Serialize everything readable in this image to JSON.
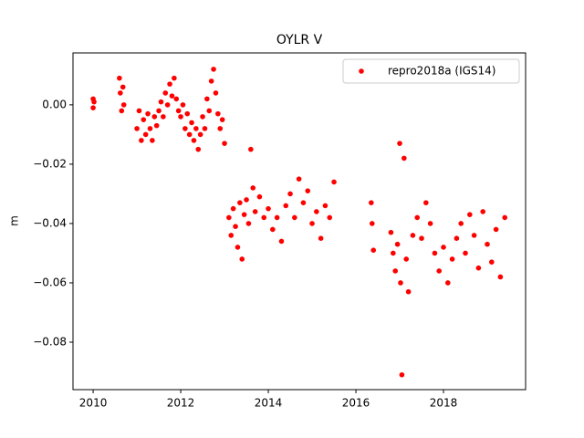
{
  "chart_data": {
    "type": "scatter",
    "title": "OYLR V",
    "y_label": "m",
    "xlim": [
      2009.54,
      2019.875
    ],
    "ylim": [
      -0.096,
      0.0175
    ],
    "xticks": [
      2010,
      2012,
      2014,
      2016,
      2018
    ],
    "yticks": [
      {
        "value": 0.0,
        "label": "0.00"
      },
      {
        "value": -0.02,
        "label": "−0.02"
      },
      {
        "value": -0.04,
        "label": "−0.04"
      },
      {
        "value": -0.06,
        "label": "−0.06"
      },
      {
        "value": -0.08,
        "label": "−0.08"
      }
    ],
    "grid": false,
    "legend": "upper right",
    "series": [
      {
        "name": "repro2018a (IGS14)",
        "color": "#ff0000",
        "x": [
          2010.0,
          2010.0,
          2010.02,
          2010.6,
          2010.62,
          2010.65,
          2010.68,
          2010.7,
          2011.0,
          2011.05,
          2011.1,
          2011.15,
          2011.2,
          2011.25,
          2011.3,
          2011.35,
          2011.4,
          2011.45,
          2011.5,
          2011.55,
          2011.6,
          2011.65,
          2011.7,
          2011.75,
          2011.8,
          2011.85,
          2011.9,
          2011.95,
          2012.0,
          2012.05,
          2012.1,
          2012.15,
          2012.2,
          2012.25,
          2012.3,
          2012.35,
          2012.4,
          2012.45,
          2012.5,
          2012.55,
          2012.6,
          2012.65,
          2012.7,
          2012.75,
          2012.8,
          2012.85,
          2012.9,
          2012.95,
          2013.0,
          2013.1,
          2013.15,
          2013.2,
          2013.25,
          2013.3,
          2013.35,
          2013.4,
          2013.45,
          2013.5,
          2013.55,
          2013.6,
          2013.65,
          2013.7,
          2013.8,
          2013.9,
          2014.0,
          2014.1,
          2014.2,
          2014.3,
          2014.4,
          2014.5,
          2014.6,
          2014.7,
          2014.8,
          2014.9,
          2015.0,
          2015.1,
          2015.2,
          2015.3,
          2015.4,
          2015.5,
          2016.35,
          2016.37,
          2016.4,
          2016.8,
          2016.85,
          2016.9,
          2016.95,
          2017.0,
          2017.02,
          2017.05,
          2017.1,
          2017.15,
          2017.2,
          2017.3,
          2017.4,
          2017.5,
          2017.6,
          2017.7,
          2017.8,
          2017.9,
          2018.0,
          2018.1,
          2018.2,
          2018.3,
          2018.4,
          2018.5,
          2018.6,
          2018.7,
          2018.8,
          2018.9,
          2019.0,
          2019.1,
          2019.2,
          2019.3,
          2019.4
        ],
        "values": [
          0.002,
          -0.001,
          0.001,
          0.009,
          0.004,
          -0.002,
          0.006,
          0.0,
          -0.008,
          -0.002,
          -0.012,
          -0.005,
          -0.01,
          -0.003,
          -0.008,
          -0.012,
          -0.004,
          -0.007,
          -0.002,
          0.001,
          -0.004,
          0.004,
          0.0,
          0.007,
          0.003,
          0.009,
          0.002,
          -0.002,
          -0.004,
          0.0,
          -0.008,
          -0.003,
          -0.01,
          -0.006,
          -0.012,
          -0.008,
          -0.015,
          -0.01,
          -0.004,
          -0.008,
          0.002,
          -0.002,
          0.008,
          0.012,
          0.004,
          -0.003,
          -0.008,
          -0.005,
          -0.013,
          -0.038,
          -0.044,
          -0.035,
          -0.041,
          -0.048,
          -0.033,
          -0.052,
          -0.037,
          -0.032,
          -0.04,
          -0.015,
          -0.028,
          -0.036,
          -0.031,
          -0.038,
          -0.035,
          -0.042,
          -0.038,
          -0.046,
          -0.034,
          -0.03,
          -0.038,
          -0.025,
          -0.033,
          -0.029,
          -0.04,
          -0.036,
          -0.045,
          -0.034,
          -0.038,
          -0.026,
          -0.033,
          -0.04,
          -0.049,
          -0.043,
          -0.05,
          -0.056,
          -0.047,
          -0.013,
          -0.06,
          -0.091,
          -0.018,
          -0.052,
          -0.063,
          -0.044,
          -0.038,
          -0.045,
          -0.033,
          -0.04,
          -0.05,
          -0.056,
          -0.048,
          -0.06,
          -0.052,
          -0.045,
          -0.04,
          -0.05,
          -0.037,
          -0.044,
          -0.055,
          -0.036,
          -0.047,
          -0.053,
          -0.042,
          -0.058,
          -0.038
        ]
      }
    ]
  }
}
